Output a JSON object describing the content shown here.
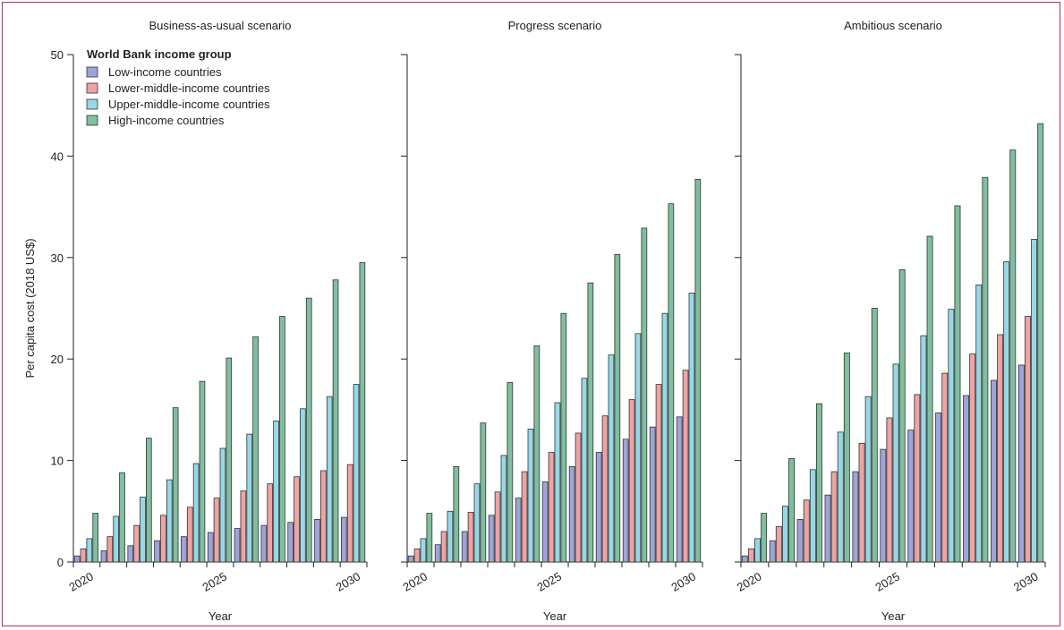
{
  "chart_data": [
    {
      "type": "bar",
      "title": "Business-as-usual scenario",
      "xlabel": "Year",
      "ylabel": "Per capita cost (2018 US$)",
      "ylim": [
        0,
        50
      ],
      "yticks": [
        0,
        10,
        20,
        30,
        40,
        50
      ],
      "categories": [
        2020,
        2021,
        2022,
        2023,
        2024,
        2025,
        2026,
        2027,
        2028,
        2029,
        2030
      ],
      "xtick_labels": [
        "2020",
        "2025",
        "2030"
      ],
      "legend_title": "World Bank income group",
      "legend_position": "top-left",
      "series": [
        {
          "name": "Low-income countries",
          "color": "#9ea4d9",
          "values": [
            0.6,
            1.1,
            1.6,
            2.1,
            2.5,
            2.9,
            3.3,
            3.6,
            3.9,
            4.2,
            4.4
          ]
        },
        {
          "name": "Lower-middle-income countries",
          "color": "#eda4a4",
          "values": [
            1.3,
            2.5,
            3.6,
            4.6,
            5.4,
            6.3,
            7.0,
            7.7,
            8.4,
            9.0,
            9.6
          ]
        },
        {
          "name": "Upper-middle-income countries",
          "color": "#98d8e6",
          "values": [
            2.3,
            4.5,
            6.4,
            8.1,
            9.7,
            11.2,
            12.6,
            13.9,
            15.1,
            16.3,
            17.5
          ]
        },
        {
          "name": "High-income countries",
          "color": "#7fbf9f",
          "values": [
            4.8,
            8.8,
            12.2,
            15.2,
            17.8,
            20.1,
            22.2,
            24.2,
            26.0,
            27.8,
            29.5
          ]
        }
      ]
    },
    {
      "type": "bar",
      "title": "Progress scenario",
      "xlabel": "Year",
      "ylim": [
        0,
        50
      ],
      "categories": [
        2020,
        2021,
        2022,
        2023,
        2024,
        2025,
        2026,
        2027,
        2028,
        2029,
        2030
      ],
      "xtick_labels": [
        "2020",
        "2025",
        "2030"
      ],
      "series": [
        {
          "name": "Low-income countries",
          "color": "#9ea4d9",
          "values": [
            0.6,
            1.7,
            3.0,
            4.6,
            6.3,
            7.9,
            9.4,
            10.8,
            12.1,
            13.3,
            14.3
          ]
        },
        {
          "name": "Lower-middle-income countries",
          "color": "#eda4a4",
          "values": [
            1.3,
            3.0,
            4.9,
            6.9,
            8.9,
            10.8,
            12.7,
            14.4,
            16.0,
            17.5,
            18.9
          ]
        },
        {
          "name": "Upper-middle-income countries",
          "color": "#98d8e6",
          "values": [
            2.3,
            5.0,
            7.7,
            10.5,
            13.1,
            15.7,
            18.1,
            20.4,
            22.5,
            24.5,
            26.5
          ]
        },
        {
          "name": "High-income countries",
          "color": "#7fbf9f",
          "values": [
            4.8,
            9.4,
            13.7,
            17.7,
            21.3,
            24.5,
            27.5,
            30.3,
            32.9,
            35.3,
            37.7
          ]
        }
      ]
    },
    {
      "type": "bar",
      "title": "Ambitious scenario",
      "xlabel": "Year",
      "ylim": [
        0,
        50
      ],
      "categories": [
        2020,
        2021,
        2022,
        2023,
        2024,
        2025,
        2026,
        2027,
        2028,
        2029,
        2030
      ],
      "xtick_labels": [
        "2020",
        "2025",
        "2030"
      ],
      "series": [
        {
          "name": "Low-income countries",
          "color": "#9ea4d9",
          "values": [
            0.6,
            2.1,
            4.2,
            6.6,
            8.9,
            11.1,
            13.0,
            14.7,
            16.4,
            17.9,
            19.4
          ]
        },
        {
          "name": "Lower-middle-income countries",
          "color": "#eda4a4",
          "values": [
            1.3,
            3.5,
            6.1,
            8.9,
            11.7,
            14.2,
            16.5,
            18.6,
            20.5,
            22.4,
            24.2
          ]
        },
        {
          "name": "Upper-middle-income countries",
          "color": "#98d8e6",
          "values": [
            2.3,
            5.5,
            9.1,
            12.8,
            16.3,
            19.5,
            22.3,
            24.9,
            27.3,
            29.6,
            31.8
          ]
        },
        {
          "name": "High-income countries",
          "color": "#7fbf9f",
          "values": [
            4.8,
            10.2,
            15.6,
            20.6,
            25.0,
            28.8,
            32.1,
            35.1,
            37.9,
            40.6,
            43.2
          ]
        }
      ]
    }
  ]
}
